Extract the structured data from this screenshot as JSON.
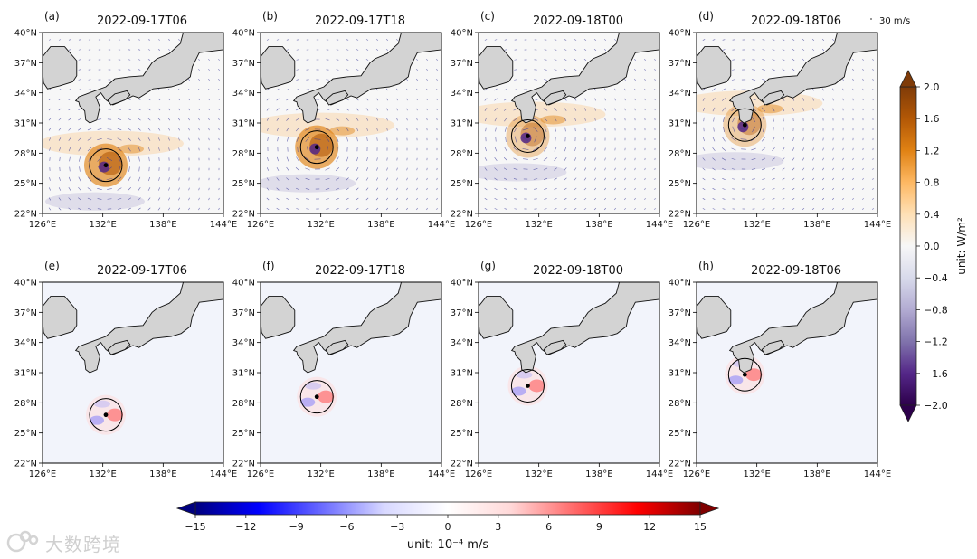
{
  "chart_data": {
    "type": "heatmap",
    "description_free": true,
    "domain": {
      "lon": [
        126,
        144
      ],
      "lat": [
        22,
        40
      ]
    },
    "lon_ticks": [
      "126°E",
      "132°E",
      "138°E",
      "144°E"
    ],
    "lat_ticks": [
      "22°N",
      "25°N",
      "28°N",
      "31°N",
      "34°N",
      "37°N",
      "40°N"
    ],
    "quiver_key": "30 m/s",
    "panels": [
      {
        "id": "a",
        "label": "(a)",
        "title": "2022-09-17T06",
        "row": "top",
        "center": [
          132.3,
          26.8
        ]
      },
      {
        "id": "b",
        "label": "(b)",
        "title": "2022-09-17T18",
        "row": "top",
        "center": [
          131.6,
          28.6
        ]
      },
      {
        "id": "c",
        "label": "(c)",
        "title": "2022-09-18T00",
        "row": "top",
        "center": [
          130.9,
          29.7
        ]
      },
      {
        "id": "d",
        "label": "(d)",
        "title": "2022-09-18T06",
        "row": "top",
        "center": [
          130.8,
          30.8
        ]
      },
      {
        "id": "e",
        "label": "(e)",
        "title": "2022-09-17T06",
        "row": "bottom",
        "center": [
          132.3,
          26.8
        ]
      },
      {
        "id": "f",
        "label": "(f)",
        "title": "2022-09-17T18",
        "row": "bottom",
        "center": [
          131.6,
          28.6
        ]
      },
      {
        "id": "g",
        "label": "(g)",
        "title": "2022-09-18T00",
        "row": "bottom",
        "center": [
          130.9,
          29.7
        ]
      },
      {
        "id": "h",
        "label": "(h)",
        "title": "2022-09-18T06",
        "row": "bottom",
        "center": [
          130.8,
          30.8
        ]
      }
    ],
    "colorbar_top": {
      "label": "unit: W/m²",
      "range": [
        -2.0,
        2.0
      ],
      "ticks": [
        "2.0",
        "1.6",
        "1.2",
        "0.8",
        "0.4",
        "0.0",
        "−0.4",
        "−0.8",
        "−1.2",
        "−1.6",
        "−2.0"
      ],
      "colors": [
        "#2d004b",
        "#542788",
        "#8073ac",
        "#b2abd2",
        "#d8daeb",
        "#f7f7f7",
        "#fee0b6",
        "#fdb863",
        "#e08214",
        "#b35806",
        "#7f3b08"
      ]
    },
    "colorbar_bottom": {
      "label": "unit: 10⁻⁴ m/s",
      "range": [
        -15,
        15
      ],
      "ticks": [
        "−15",
        "−12",
        "−9",
        "−6",
        "−3",
        "0",
        "3",
        "6",
        "9",
        "12",
        "15"
      ],
      "colors": [
        "#00007f",
        "#0000ff",
        "#6a6aff",
        "#d8d8ff",
        "#ffffff",
        "#ffd8d8",
        "#ff6a6a",
        "#ff0000",
        "#7f0000"
      ]
    }
  },
  "watermark": {
    "text": "大数跨境"
  }
}
